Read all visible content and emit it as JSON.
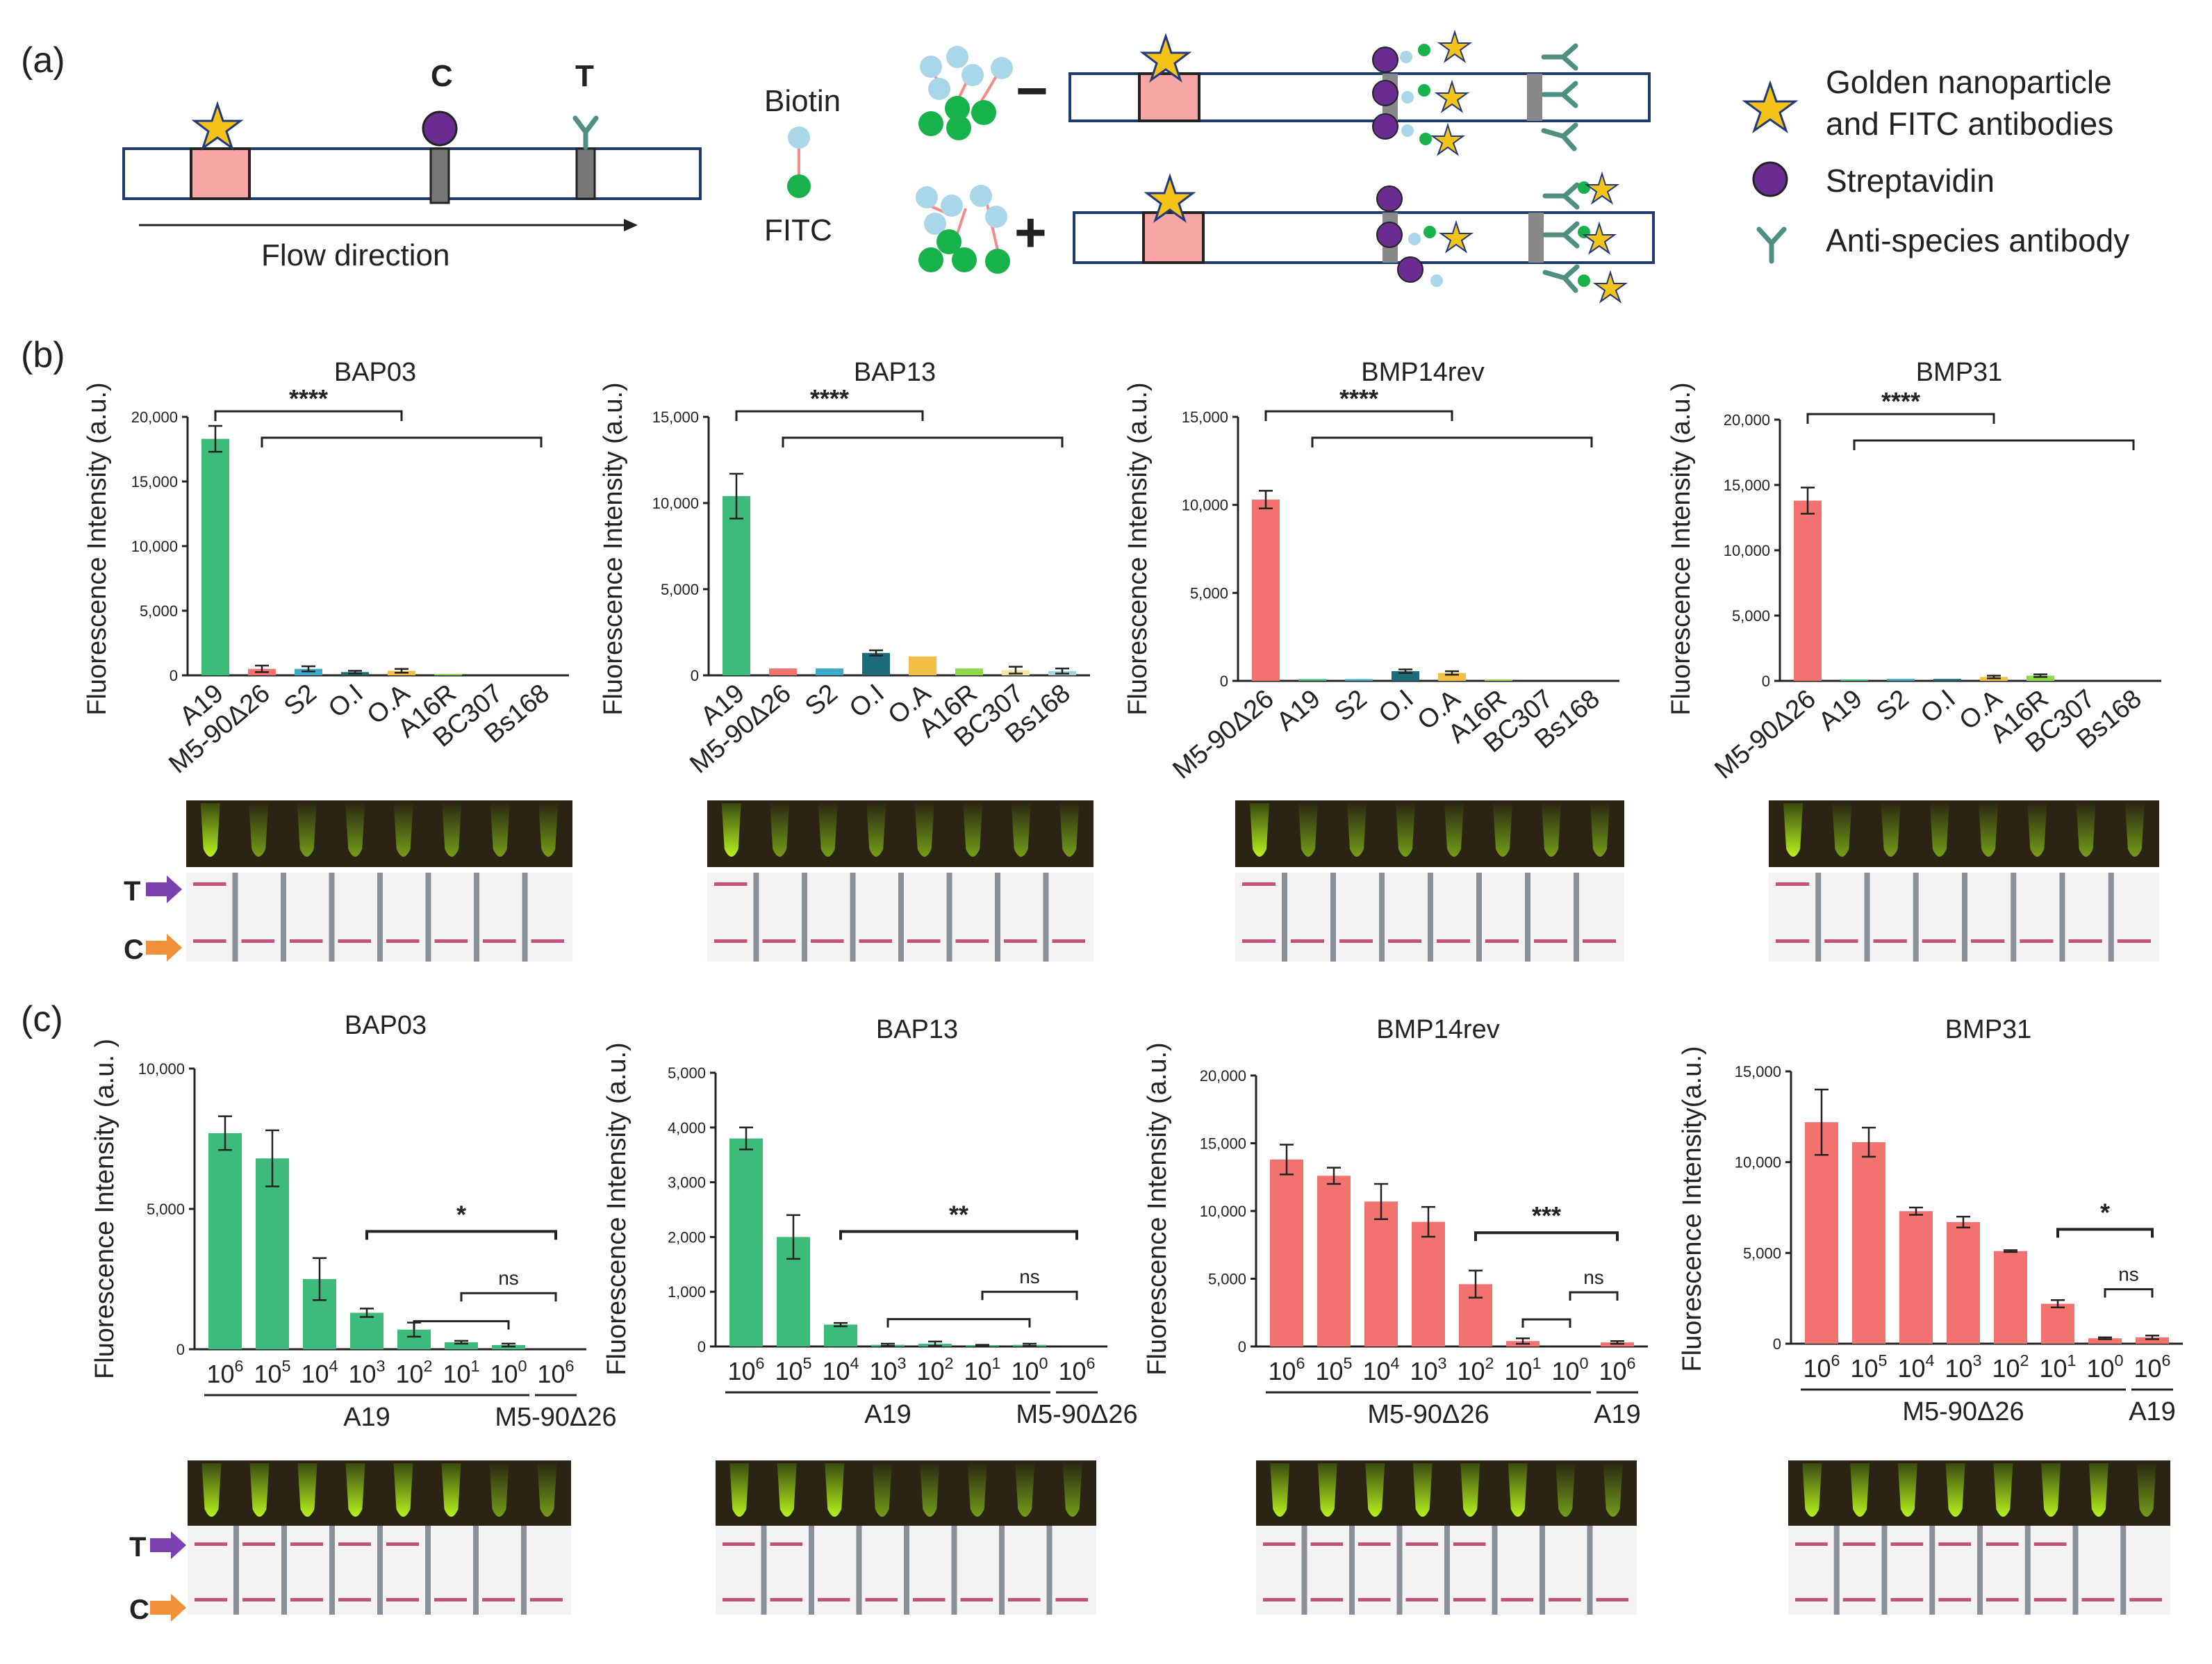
{
  "panel_labels": {
    "a": "(a)",
    "b": "(b)",
    "c": "(c)"
  },
  "schematic": {
    "c_label": "C",
    "t_label": "T",
    "flow_direction": "Flow direction",
    "biotin": "Biotin",
    "fitc": "FITC",
    "minus": "−",
    "plus": "+",
    "legend": {
      "gold_line1": "Golden nanoparticle",
      "gold_line2": "and FITC antibodies",
      "strep": "Streptavidin",
      "anti": "Anti-species antibody"
    }
  },
  "strip_labels": {
    "t": "T",
    "c": "C"
  },
  "sig_labels": [
    "****",
    "****",
    "****",
    "****"
  ],
  "colors": {
    "green": "#3dbb7a",
    "red": "#f2726f",
    "orange": "#f07a63",
    "pink": "#f5a0a0",
    "blue": "#3aaac8",
    "teal": "#1d6b78",
    "yellow": "#f2bf44",
    "lightgreen": "#8ed94a",
    "lightyellow": "#f3e6a0",
    "lightteal": "#9ed9d6",
    "purple": "#6a2c91",
    "strip_teal": "#5a9a8a",
    "arrow_purple": "#7b3fb0",
    "arrow_orange": "#f0913a"
  },
  "chart_data": [
    {
      "type": "bar",
      "title": "BAP03",
      "ylabel": "Fluorescence Intensity (a.u.)",
      "categories": [
        "A19",
        "M5-90Δ26",
        "S2",
        "O.I",
        "O.A",
        "A16R",
        "BC307",
        "Bs168"
      ],
      "values": [
        18300,
        500,
        500,
        250,
        350,
        100,
        0,
        0
      ],
      "errors": [
        1000,
        250,
        200,
        100,
        150,
        0,
        0,
        0
      ],
      "bar_colors": [
        "green",
        "red",
        "blue",
        "teal",
        "yellow",
        "lightgreen",
        "lightyellow",
        "lightteal"
      ],
      "ylim": [
        0,
        20000
      ],
      "yticks": [
        "0",
        "5,000",
        "10,000",
        "15,000",
        "20,000"
      ],
      "significance": "****"
    },
    {
      "type": "bar",
      "title": "BAP13",
      "ylabel": "Fluorescence Intensity (a.u.)",
      "categories": [
        "A19",
        "M5-90Δ26",
        "S2",
        "O.I",
        "O.A",
        "A16R",
        "BC307",
        "Bs168"
      ],
      "values": [
        10400,
        400,
        400,
        1300,
        1100,
        400,
        300,
        250
      ],
      "errors": [
        1300,
        0,
        0,
        150,
        0,
        0,
        200,
        150
      ],
      "bar_colors": [
        "green",
        "red",
        "blue",
        "teal",
        "yellow",
        "lightgreen",
        "lightyellow",
        "lightteal"
      ],
      "ylim": [
        0,
        15000
      ],
      "yticks": [
        "0",
        "5,000",
        "10,000",
        "15,000"
      ],
      "significance": "****"
    },
    {
      "type": "bar",
      "title": "BMP14rev",
      "ylabel": "Fluorescence Intensity (a.u.)",
      "categories": [
        "M5-90Δ26",
        "A19",
        "S2",
        "O.I",
        "O.A",
        "A16R",
        "BC307",
        "Bs168"
      ],
      "values": [
        10300,
        100,
        100,
        550,
        450,
        50,
        0,
        0
      ],
      "errors": [
        500,
        0,
        0,
        100,
        100,
        0,
        0,
        0
      ],
      "bar_colors": [
        "red",
        "green",
        "blue",
        "teal",
        "yellow",
        "lightgreen",
        "lightyellow",
        "lightteal"
      ],
      "ylim": [
        0,
        15000
      ],
      "yticks": [
        "0",
        "5,000",
        "10,000",
        "15,000"
      ],
      "significance": "****"
    },
    {
      "type": "bar",
      "title": "BMP31",
      "ylabel": "Fluorescence Intensity (a.u.)",
      "categories": [
        "M5-90Δ26",
        "A19",
        "S2",
        "O.I",
        "O.A",
        "A16R",
        "BC307",
        "Bs168"
      ],
      "values": [
        13800,
        100,
        150,
        150,
        300,
        400,
        0,
        0
      ],
      "errors": [
        1000,
        0,
        0,
        0,
        100,
        100,
        0,
        0
      ],
      "bar_colors": [
        "red",
        "green",
        "blue",
        "teal",
        "yellow",
        "lightgreen",
        "lightyellow",
        "lightteal"
      ],
      "ylim": [
        0,
        20000
      ],
      "yticks": [
        "0",
        "5,000",
        "10,000",
        "15,000",
        "20,000"
      ],
      "significance": "****"
    },
    {
      "type": "bar",
      "title": "BAP03",
      "ylabel": "Fluorescence Intensity (a.u. )",
      "categories": [
        "10^6",
        "10^5",
        "10^4",
        "10^3",
        "10^2",
        "10^1",
        "10^0",
        "10^6"
      ],
      "values": [
        7700,
        6800,
        2500,
        1300,
        700,
        250,
        150,
        0
      ],
      "errors": [
        600,
        1000,
        750,
        150,
        250,
        50,
        50,
        0
      ],
      "color": "green",
      "ylim": [
        0,
        10000
      ],
      "yticks": [
        "0",
        "5,000",
        "10,000"
      ],
      "groups": [
        {
          "label": "A19",
          "from": 0,
          "to": 6
        },
        {
          "label": "M5-90Δ26",
          "from": 7,
          "to": 7
        }
      ],
      "annotations": [
        {
          "label": "*",
          "from": 3,
          "to": 7,
          "level": 3
        },
        {
          "label": "ns",
          "from": 5,
          "to": 7,
          "level": 2
        },
        {
          "label": "",
          "from": 4,
          "to": 6,
          "level": 1
        }
      ]
    },
    {
      "type": "bar",
      "title": "BAP13",
      "ylabel": "Fluorescence Intensity (a.u.)",
      "categories": [
        "10^6",
        "10^5",
        "10^4",
        "10^3",
        "10^2",
        "10^1",
        "10^0",
        "10^6"
      ],
      "values": [
        3800,
        2000,
        400,
        30,
        50,
        20,
        30,
        0
      ],
      "errors": [
        200,
        400,
        30,
        20,
        40,
        10,
        20,
        0
      ],
      "color": "green",
      "ylim": [
        0,
        5000
      ],
      "yticks": [
        "0",
        "1,000",
        "2,000",
        "3,000",
        "4,000",
        "5,000"
      ],
      "groups": [
        {
          "label": "A19",
          "from": 0,
          "to": 6
        },
        {
          "label": "M5-90Δ26",
          "from": 7,
          "to": 7
        }
      ],
      "annotations": [
        {
          "label": "**",
          "from": 2,
          "to": 7,
          "level": 3
        },
        {
          "label": "ns",
          "from": 5,
          "to": 7,
          "level": 2
        },
        {
          "label": "",
          "from": 3,
          "to": 6,
          "level": 1
        }
      ]
    },
    {
      "type": "bar",
      "title": "BMP14rev",
      "ylabel": "Fluorescence Intensity (a.u.)",
      "categories": [
        "10^6",
        "10^5",
        "10^4",
        "10^3",
        "10^2",
        "10^1",
        "10^0",
        "10^6"
      ],
      "values": [
        13800,
        12600,
        10700,
        9200,
        4600,
        400,
        0,
        300
      ],
      "errors": [
        1100,
        600,
        1300,
        1100,
        1000,
        200,
        0,
        100
      ],
      "color": "red",
      "ylim": [
        0,
        20000
      ],
      "yticks": [
        "0",
        "5,000",
        "10,000",
        "15,000",
        "20,000"
      ],
      "groups": [
        {
          "label": "M5-90Δ26",
          "from": 0,
          "to": 6
        },
        {
          "label": "A19",
          "from": 7,
          "to": 7
        }
      ],
      "annotations": [
        {
          "label": "***",
          "from": 4,
          "to": 7,
          "level": 3
        },
        {
          "label": "ns",
          "from": 6,
          "to": 7,
          "level": 2
        },
        {
          "label": "",
          "from": 5,
          "to": 6,
          "level": 1
        }
      ]
    },
    {
      "type": "bar",
      "title": "BMP31",
      "ylabel": "Fluorescence Intensity(a.u.)",
      "categories": [
        "10^6",
        "10^5",
        "10^4",
        "10^3",
        "10^2",
        "10^1",
        "10^0",
        "10^6"
      ],
      "values": [
        12200,
        11100,
        7300,
        6700,
        5100,
        2200,
        300,
        350
      ],
      "errors": [
        1800,
        800,
        200,
        300,
        50,
        200,
        50,
        100
      ],
      "color": "red",
      "ylim": [
        0,
        15000
      ],
      "yticks": [
        "0",
        "5,000",
        "10,000",
        "15,000"
      ],
      "groups": [
        {
          "label": "M5-90Δ26",
          "from": 0,
          "to": 6
        },
        {
          "label": "A19",
          "from": 7,
          "to": 7
        }
      ],
      "annotations": [
        {
          "label": "*",
          "from": 5,
          "to": 7,
          "level": 3
        },
        {
          "label": "ns",
          "from": 6,
          "to": 7,
          "level": 2
        }
      ]
    }
  ]
}
